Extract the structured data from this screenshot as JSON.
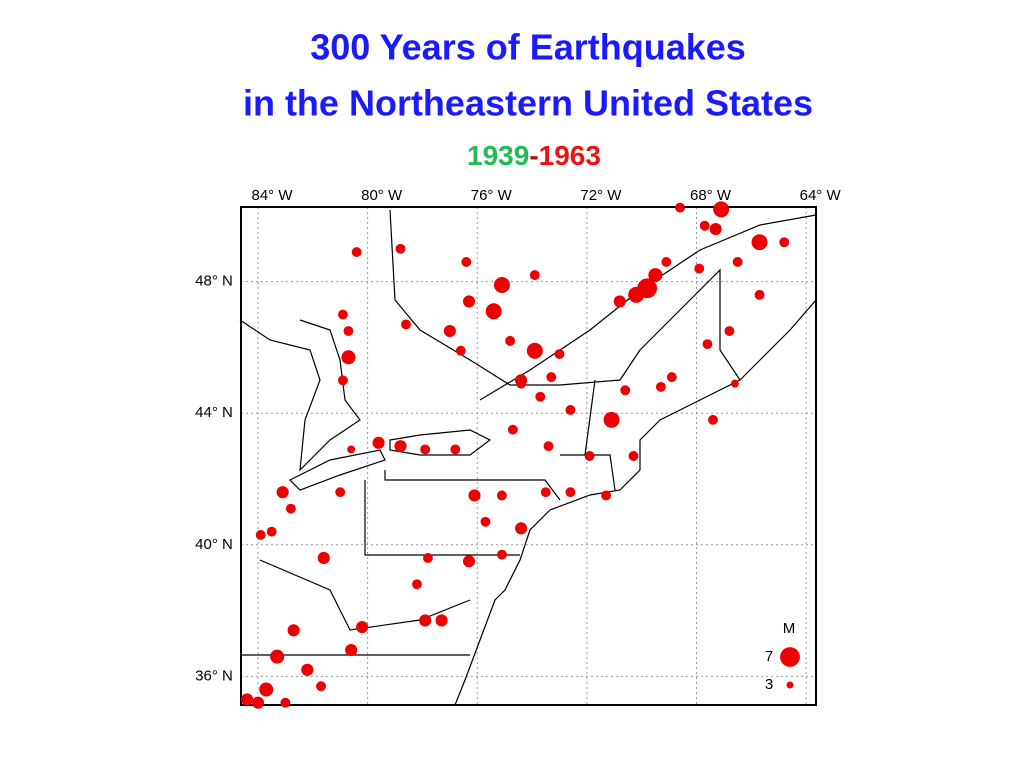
{
  "chart_data": {
    "type": "scatter",
    "title": [
      "300 Years of Earthquakes",
      "in the Northeastern United States"
    ],
    "subtitle": {
      "start": "1939",
      "separator": "-",
      "end": "1963"
    },
    "color": "#ee0000",
    "x": [
      68.6,
      67.1,
      67.7,
      67.3,
      65.7,
      64.8,
      66.5,
      69.8,
      70.2,
      69.5,
      70.8,
      69.1,
      67.9,
      65.7,
      66.8,
      67.6,
      66.6,
      67.4,
      68.9,
      69.3,
      71.1,
      70.6,
      70.3,
      71.9,
      71.3,
      72.6,
      73.5,
      74.4,
      75.1,
      73.4,
      72.6,
      73.9,
      73.0,
      74.4,
      73.3,
      75.1,
      75.4,
      76.3,
      76.4,
      73.9,
      77.0,
      76.6,
      74.8,
      80.4,
      78.8,
      80.7,
      80.7,
      80.9,
      80.9,
      78.6,
      79.6,
      78.8,
      77.9,
      76.8,
      80.6,
      83.1,
      82.8,
      83.5,
      83.9,
      81.0,
      81.6,
      77.8,
      78.2,
      76.3,
      77.3,
      77.9,
      80.2,
      82.7,
      80.6,
      82.2,
      83.3,
      83.7,
      84.4,
      84.0,
      83.0,
      81.7,
      75.1,
      76.1,
      75.7,
      74.4,
      73.7,
      74.7
    ],
    "values": [
      50.25,
      50.2,
      49.7,
      49.6,
      49.2,
      49.2,
      48.6,
      47.8,
      47.6,
      48.2,
      47.4,
      48.6,
      48.4,
      47.6,
      46.5,
      46.1,
      44.9,
      43.8,
      45.1,
      44.8,
      43.8,
      44.7,
      42.7,
      42.7,
      41.5,
      41.6,
      41.6,
      40.5,
      39.7,
      43.0,
      44.1,
      45.9,
      45.8,
      45.0,
      45.1,
      47.9,
      47.1,
      47.4,
      48.6,
      48.2,
      46.5,
      45.9,
      46.2,
      48.9,
      49.0,
      46.5,
      45.7,
      45.0,
      47.0,
      46.7,
      43.1,
      43.0,
      42.9,
      42.9,
      42.9,
      41.6,
      41.1,
      40.4,
      40.3,
      41.6,
      39.6,
      39.6,
      38.8,
      39.5,
      37.7,
      37.7,
      37.5,
      37.4,
      36.8,
      36.2,
      36.6,
      35.6,
      35.3,
      35.2,
      35.2,
      35.7,
      41.5,
      41.5,
      40.7,
      44.9,
      44.5,
      43.5
    ],
    "sizes": [
      3.9,
      5.8,
      3.9,
      4.6,
      5.8,
      3.9,
      3.9,
      7.0,
      5.8,
      5.2,
      4.6,
      3.9,
      3.9,
      3.9,
      3.9,
      3.9,
      3.3,
      3.9,
      3.9,
      3.9,
      5.8,
      3.9,
      3.9,
      3.9,
      3.9,
      3.9,
      3.9,
      4.6,
      3.9,
      3.9,
      3.9,
      5.8,
      3.9,
      4.6,
      3.9,
      5.8,
      5.8,
      4.6,
      3.9,
      3.9,
      4.6,
      3.9,
      3.9,
      3.9,
      3.9,
      3.9,
      5.2,
      3.9,
      3.9,
      3.9,
      4.6,
      4.6,
      3.9,
      3.9,
      3.3,
      4.6,
      3.9,
      3.9,
      3.9,
      3.9,
      4.6,
      3.9,
      3.9,
      4.6,
      4.6,
      4.6,
      4.6,
      4.6,
      4.6,
      4.6,
      5.2,
      5.2,
      4.6,
      4.6,
      3.9,
      3.9,
      3.9,
      4.6,
      3.9,
      3.9,
      3.9,
      3.9
    ],
    "xlim": [
      84.62,
      63.64
    ],
    "ylim": [
      35.13,
      50.27
    ],
    "xticks": [
      {
        "value": 84,
        "label": "84° W"
      },
      {
        "value": 80,
        "label": "80° W"
      },
      {
        "value": 76,
        "label": "76° W"
      },
      {
        "value": 72,
        "label": "72° W"
      },
      {
        "value": 68,
        "label": "68° W"
      },
      {
        "value": 64,
        "label": "64° W"
      }
    ],
    "yticks": [
      {
        "value": 48,
        "label": "48° N"
      },
      {
        "value": 44,
        "label": "44° N"
      },
      {
        "value": 40,
        "label": "40° N"
      },
      {
        "value": 36,
        "label": "36° N"
      }
    ],
    "grid": true,
    "legend": {
      "title": "M",
      "sizes": [
        7,
        3
      ]
    }
  }
}
